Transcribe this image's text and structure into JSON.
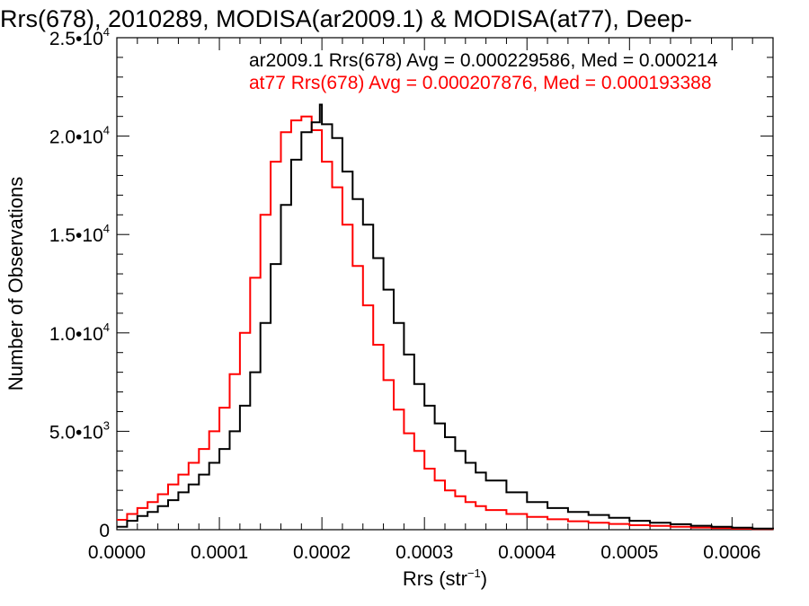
{
  "chart_data": {
    "type": "line",
    "title": "Rrs(678), 2010289, MODISA(ar2009.1) & MODISA(at77), Deep-",
    "xlabel": "Rrs (str",
    "xlabel_sup": "−1",
    "xlabel_end": ")",
    "ylabel": "Number of Observations",
    "xlim": [
      0,
      0.00064
    ],
    "ylim": [
      0,
      25000
    ],
    "x_ticks": [
      0,
      0.0001,
      0.0002,
      0.0003,
      0.0004,
      0.0005,
      0.0006
    ],
    "x_tick_labels": [
      "0.0000",
      "0.0001",
      "0.0002",
      "0.0003",
      "0.0004",
      "0.0005",
      "0.0006"
    ],
    "y_ticks": [
      {
        "value": 0,
        "mantissa": "0",
        "exp": ""
      },
      {
        "value": 5000,
        "mantissa": "5.0•10",
        "exp": "3"
      },
      {
        "value": 10000,
        "mantissa": "1.0•10",
        "exp": "4"
      },
      {
        "value": 15000,
        "mantissa": "1.5•10",
        "exp": "4"
      },
      {
        "value": 20000,
        "mantissa": "2.0•10",
        "exp": "4"
      },
      {
        "value": 25000,
        "mantissa": "2.5•10",
        "exp": "4"
      }
    ],
    "grid": false,
    "legend_position": "top-right",
    "series": [
      {
        "label": "ar2009.1 Rrs(678) Avg = 0.000229586, Med = 0.000214",
        "color": "#000000",
        "x": [
          0,
          1e-05,
          2e-05,
          3e-05,
          4e-05,
          5e-05,
          6e-05,
          7e-05,
          8e-05,
          9e-05,
          0.0001,
          0.00011,
          0.00012,
          0.00013,
          0.00014,
          0.00015,
          0.00016,
          0.00017,
          0.00018,
          0.00019,
          0.000198,
          0.0002,
          0.00021,
          0.00022,
          0.00023,
          0.00024,
          0.00025,
          0.00026,
          0.00027,
          0.00028,
          0.00029,
          0.0003,
          0.00031,
          0.00032,
          0.00033,
          0.00034,
          0.00035,
          0.00036,
          0.00038,
          0.0004,
          0.00042,
          0.00044,
          0.00046,
          0.00048,
          0.0005,
          0.00052,
          0.00054,
          0.00056,
          0.00058,
          0.0006,
          0.00062,
          0.00064
        ],
        "y": [
          150,
          450,
          700,
          900,
          1200,
          1500,
          1900,
          2300,
          2800,
          3400,
          4100,
          5000,
          6300,
          8000,
          10500,
          13500,
          16500,
          18800,
          20200,
          20700,
          21600,
          20600,
          19900,
          18200,
          16800,
          15500,
          13800,
          12200,
          10500,
          8900,
          7400,
          6300,
          5400,
          4700,
          4000,
          3400,
          2900,
          2500,
          1900,
          1400,
          1100,
          900,
          750,
          600,
          450,
          350,
          280,
          200,
          150,
          100,
          60,
          30
        ]
      },
      {
        "label": "at77 Rrs(678) Avg = 0.000207876, Med = 0.000193388",
        "color": "#ff0000",
        "x": [
          0,
          1e-05,
          2e-05,
          3e-05,
          4e-05,
          5e-05,
          6e-05,
          7e-05,
          8e-05,
          9e-05,
          0.0001,
          0.00011,
          0.00012,
          0.00013,
          0.00014,
          0.00015,
          0.00016,
          0.00017,
          0.00018,
          0.00019,
          0.0002,
          0.00021,
          0.00022,
          0.00023,
          0.00024,
          0.00025,
          0.00026,
          0.00027,
          0.00028,
          0.00029,
          0.0003,
          0.00031,
          0.00032,
          0.00033,
          0.00034,
          0.00035,
          0.00036,
          0.00038,
          0.0004,
          0.00042,
          0.00044,
          0.00046,
          0.00048,
          0.0005,
          0.00052,
          0.00054,
          0.00056,
          0.00058,
          0.0006,
          0.00062,
          0.00064
        ],
        "y": [
          500,
          800,
          1100,
          1400,
          1800,
          2300,
          2800,
          3400,
          4100,
          5000,
          6200,
          7900,
          10000,
          12800,
          16000,
          18700,
          20200,
          20800,
          21000,
          20300,
          18700,
          17400,
          15500,
          13400,
          11400,
          9400,
          7600,
          6100,
          4900,
          4000,
          3100,
          2500,
          2000,
          1700,
          1400,
          1200,
          1000,
          800,
          650,
          530,
          430,
          350,
          290,
          230,
          190,
          150,
          110,
          80,
          50,
          30,
          20
        ]
      }
    ]
  }
}
